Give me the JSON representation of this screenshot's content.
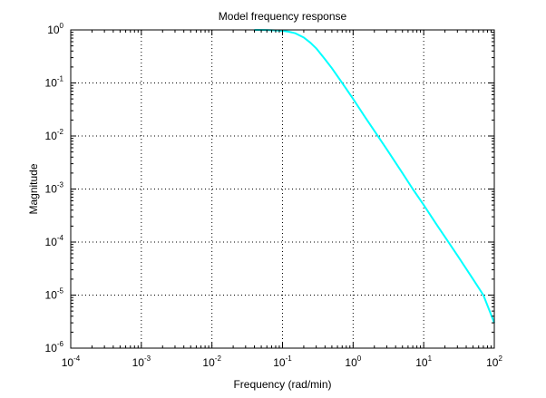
{
  "chart_data": {
    "type": "line",
    "title": "Model frequency response",
    "xlabel": "Frequency (rad/min)",
    "ylabel": "Magnitude",
    "xscale": "log",
    "yscale": "log",
    "xlim": [
      0.0001,
      100
    ],
    "ylim": [
      1e-06,
      1
    ],
    "grid": true,
    "x_ticks": [
      {
        "base": "10",
        "exp": "-4"
      },
      {
        "base": "10",
        "exp": "-3"
      },
      {
        "base": "10",
        "exp": "-2"
      },
      {
        "base": "10",
        "exp": "-1"
      },
      {
        "base": "10",
        "exp": "0"
      },
      {
        "base": "10",
        "exp": "1"
      },
      {
        "base": "10",
        "exp": "2"
      }
    ],
    "y_ticks": [
      {
        "base": "10",
        "exp": "-6"
      },
      {
        "base": "10",
        "exp": "-5"
      },
      {
        "base": "10",
        "exp": "-4"
      },
      {
        "base": "10",
        "exp": "-3"
      },
      {
        "base": "10",
        "exp": "-2"
      },
      {
        "base": "10",
        "exp": "-1"
      },
      {
        "base": "10",
        "exp": "0"
      }
    ],
    "series": [
      {
        "color": "#00ffff",
        "x": [
          0.04,
          0.06,
          0.08,
          0.1,
          0.12,
          0.15,
          0.2,
          0.25,
          0.3,
          0.4,
          0.5,
          0.7,
          1,
          1.5,
          2,
          3,
          5,
          7,
          10,
          15,
          20,
          30,
          50,
          70,
          100
        ],
        "y": [
          1.0,
          0.995,
          0.98,
          0.96,
          0.93,
          0.87,
          0.72,
          0.57,
          0.45,
          0.28,
          0.19,
          0.1,
          0.05,
          0.022,
          0.0125,
          0.0056,
          0.002,
          0.001,
          0.0005,
          0.00022,
          0.000125,
          5.6e-05,
          2e-05,
          1e-05,
          3e-06
        ]
      }
    ]
  }
}
